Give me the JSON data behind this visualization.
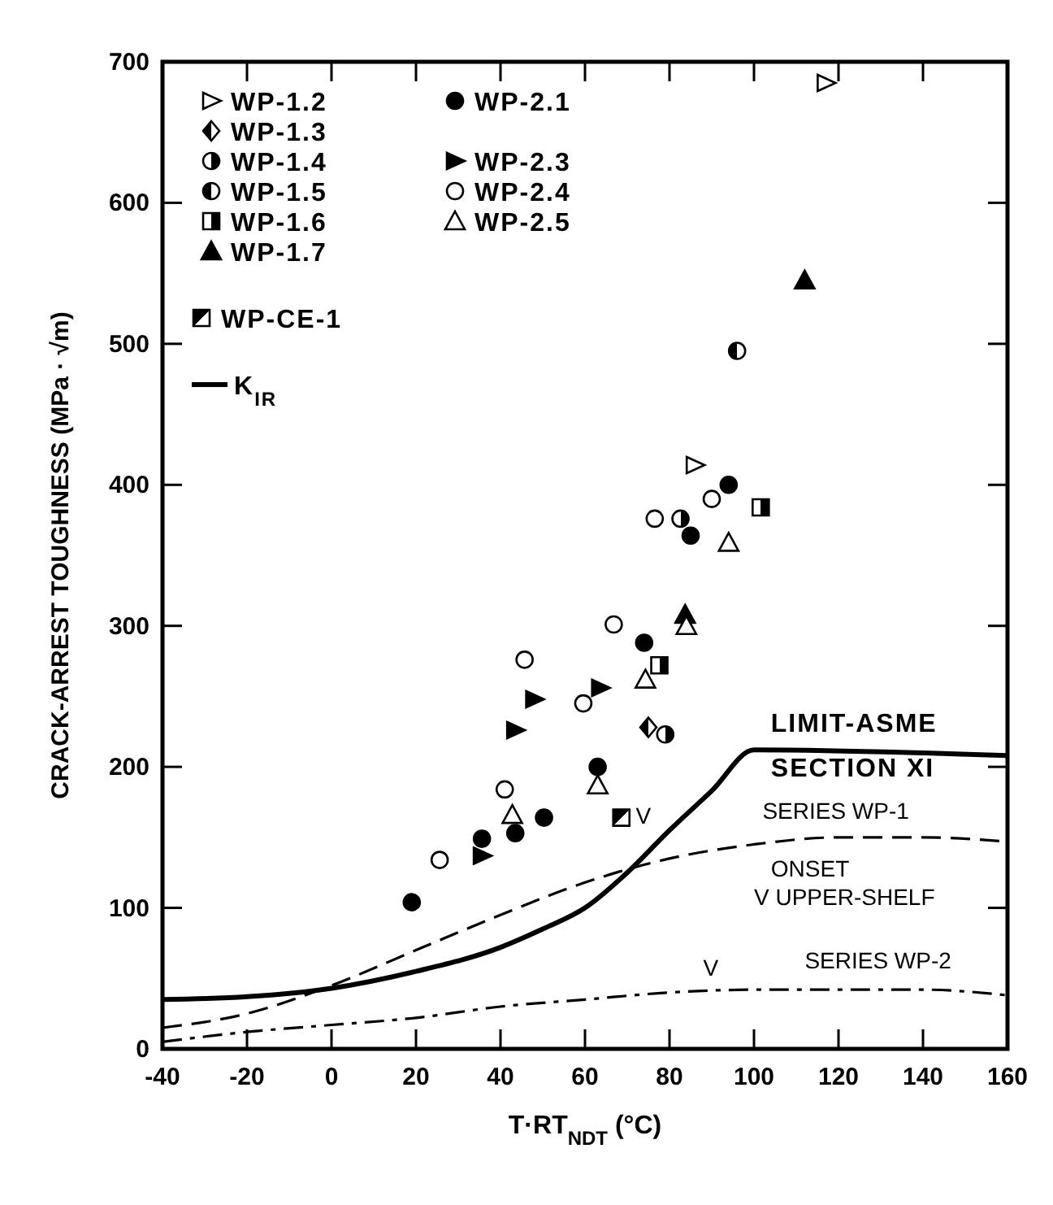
{
  "chart_data": {
    "type": "scatter",
    "xlabel": "T·RT$_{NDT}$ (°C)",
    "ylabel": "CRACK-ARREST TOUGHNESS (MPa · √m)",
    "xlim": [
      -40,
      160
    ],
    "xticks": [
      -40,
      -20,
      0,
      20,
      40,
      60,
      80,
      100,
      120,
      140,
      160
    ],
    "ylim": [
      0,
      700
    ],
    "yticks": [
      0,
      100,
      200,
      300,
      400,
      500,
      600,
      700
    ],
    "grid": false,
    "legend": "top left",
    "series": [
      {
        "name": "WP-1.2",
        "color": "#000000",
        "marker": "triangle",
        "x": [
          117,
          86
        ],
        "values": [
          685,
          414
        ]
      },
      {
        "name": "WP-1.3",
        "color": "#000000",
        "marker": "diamond",
        "x": [
          75
        ],
        "values": [
          228
        ]
      },
      {
        "name": "WP-1.4",
        "color": "#000000",
        "marker": "circle",
        "x": [
          82.6,
          79
        ],
        "values": [
          376,
          223
        ]
      },
      {
        "name": "WP-1.5",
        "color": "#000000",
        "marker": "circle",
        "x": [
          96
        ],
        "values": [
          495
        ]
      },
      {
        "name": "WP-1.6",
        "color": "#000000",
        "marker": "square",
        "x": [
          101.6,
          77.6
        ],
        "values": [
          384,
          272
        ]
      },
      {
        "name": "WP-1.7",
        "color": "#000000",
        "marker": "triangle",
        "x": [
          112,
          83.7
        ],
        "values": [
          545,
          308
        ]
      },
      {
        "name": "WP-2.1",
        "color": "#000000",
        "marker": "circle",
        "x": [
          94,
          85,
          74,
          63,
          50.3,
          43.5,
          35.6,
          19
        ],
        "values": [
          400,
          364,
          288,
          200,
          164,
          153,
          149,
          104
        ]
      },
      {
        "name": "WP-2.3",
        "color": "#000000",
        "marker": "triangle",
        "x": [
          63.6,
          48,
          43.5,
          35.6
        ],
        "values": [
          256,
          248,
          226,
          137
        ]
      },
      {
        "name": "WP-2.4",
        "color": "#000000",
        "marker": "circle",
        "x": [
          90,
          76.5,
          66.8,
          59.6,
          45.7,
          41,
          25.6
        ],
        "values": [
          390,
          376,
          301,
          245,
          276,
          184,
          134
        ]
      },
      {
        "name": "WP-2.5",
        "color": "#000000",
        "marker": "triangle",
        "x": [
          94,
          84,
          74.3,
          63,
          42.8
        ],
        "values": [
          359,
          300,
          262,
          187,
          166
        ]
      },
      {
        "name": "WP-CE-1",
        "color": "#000000",
        "marker": "square",
        "x": [
          68.6
        ],
        "values": [
          164
        ]
      },
      {
        "name": "K$_{IR}$",
        "type": "line",
        "color": "#000000",
        "line_style": "solid",
        "x": [
          -40,
          -20,
          0,
          20,
          40,
          50,
          60,
          70,
          80,
          90,
          100,
          160
        ],
        "values": [
          35,
          37,
          43,
          55,
          72,
          85,
          100,
          125,
          155,
          183,
          212,
          208
        ]
      },
      {
        "type": "line",
        "color": "#000000",
        "line_style": "dashed",
        "x": [
          -40,
          -20,
          0,
          20,
          40,
          60,
          80,
          100,
          120,
          140,
          160
        ],
        "values": [
          15,
          25,
          45,
          70,
          95,
          118,
          135,
          145,
          150,
          150,
          147
        ]
      },
      {
        "type": "line",
        "color": "#000000",
        "line_style": "dashdot",
        "x": [
          -40,
          -20,
          0,
          20,
          40,
          60,
          80,
          100,
          120,
          140,
          160
        ],
        "values": [
          5,
          12,
          17,
          22,
          30,
          35,
          40,
          42,
          42,
          42,
          38
        ]
      }
    ],
    "annotations": [
      "LIMIT-ASME",
      "SECTION  XI",
      "SERIES WP-1",
      "ONSET",
      "V UPPER-SHELF",
      "SERIES WP-2",
      "V",
      "V"
    ]
  }
}
